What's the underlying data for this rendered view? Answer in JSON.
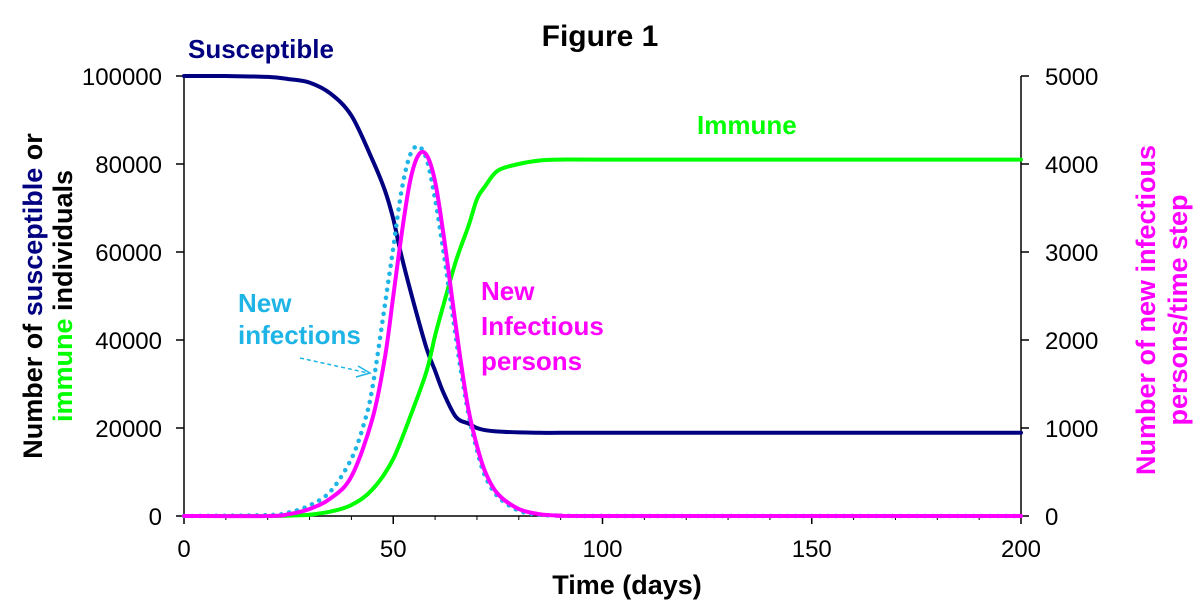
{
  "chart_data": {
    "type": "line",
    "title": "Figure 1",
    "xlabel": "Time (days)",
    "ylabel_left_parts": [
      {
        "text": "Number of ",
        "color": "#000000"
      },
      {
        "text": "susceptible",
        "color": "#000080"
      },
      {
        "text": " or",
        "color": "#000000"
      },
      {
        "text": "immune",
        "color": "#00FF00"
      },
      {
        "text": " individuals",
        "color": "#000000"
      }
    ],
    "ylabel_right_lines": [
      "Number of new infectious",
      "persons/time step"
    ],
    "xlim": [
      0,
      200
    ],
    "ylim_left": [
      0,
      100000
    ],
    "ylim_right": [
      0,
      5000
    ],
    "x_ticks": [
      "0",
      "50",
      "100",
      "150",
      "200"
    ],
    "y_left_ticks": [
      "0",
      "20000",
      "40000",
      "60000",
      "80000",
      "100000"
    ],
    "y_right_ticks": [
      "0",
      "1000",
      "2000",
      "3000",
      "4000",
      "5000"
    ],
    "grid": false,
    "legend": "inline labels",
    "series": [
      {
        "name": "Susceptible",
        "axis": "left",
        "color": "#000080",
        "style": "solid",
        "x": [
          0,
          10,
          20,
          25,
          30,
          35,
          40,
          45,
          48,
          50,
          52,
          55,
          58,
          60,
          62,
          65,
          68,
          70,
          72,
          75,
          80,
          85,
          90,
          100,
          150,
          200
        ],
        "y": [
          99990,
          99990,
          99800,
          99300,
          98500,
          96000,
          91000,
          81000,
          74000,
          67500,
          59000,
          48000,
          38000,
          33000,
          28000,
          22500,
          21000,
          20000,
          19500,
          19200,
          19000,
          18900,
          18900,
          18900,
          18900,
          18900
        ]
      },
      {
        "name": "Immune",
        "axis": "left",
        "color": "#00FF00",
        "style": "solid",
        "x": [
          0,
          20,
          25,
          30,
          35,
          40,
          45,
          50,
          55,
          58,
          60,
          62,
          65,
          68,
          70,
          72,
          75,
          80,
          85,
          90,
          100,
          150,
          200
        ],
        "y": [
          0,
          0,
          100,
          300,
          1000,
          2500,
          6000,
          13000,
          25000,
          33000,
          41000,
          48000,
          58000,
          66000,
          72000,
          75000,
          78500,
          80000,
          80800,
          81000,
          81000,
          81000,
          81000
        ]
      },
      {
        "name": "New infections",
        "axis": "right",
        "color": "#1EB4E6",
        "style": "dotted",
        "x": [
          0,
          20,
          25,
          30,
          35,
          40,
          43,
          45,
          48,
          50,
          52,
          54,
          56,
          58,
          60,
          62,
          64,
          66,
          68,
          70,
          72,
          75,
          80,
          85,
          90,
          100,
          200
        ],
        "y": [
          0,
          10,
          40,
          120,
          280,
          650,
          1050,
          1450,
          2400,
          3050,
          3700,
          4100,
          4200,
          4050,
          3600,
          3000,
          2350,
          1700,
          1150,
          750,
          450,
          220,
          60,
          15,
          5,
          0,
          0
        ]
      },
      {
        "name": "New Infectious persons",
        "axis": "right",
        "color": "#FF00FF",
        "style": "solid",
        "x": [
          0,
          20,
          25,
          30,
          35,
          40,
          45,
          48,
          50,
          52,
          54,
          56,
          58,
          60,
          62,
          64,
          66,
          68,
          70,
          72,
          75,
          80,
          85,
          90,
          100,
          200
        ],
        "y": [
          0,
          0,
          20,
          80,
          200,
          450,
          1100,
          1800,
          2500,
          3200,
          3800,
          4100,
          4100,
          3800,
          3200,
          2500,
          1800,
          1200,
          800,
          500,
          250,
          80,
          20,
          5,
          0,
          0
        ]
      }
    ],
    "annotations": [
      {
        "lines": [
          "Susceptible"
        ],
        "color": "#000080"
      },
      {
        "lines": [
          "Immune"
        ],
        "color": "#00FF00"
      },
      {
        "lines": [
          "New",
          "infections"
        ],
        "color": "#1EB4E6"
      },
      {
        "lines": [
          "New",
          "Infectious",
          "persons"
        ],
        "color": "#FF00FF"
      }
    ]
  }
}
